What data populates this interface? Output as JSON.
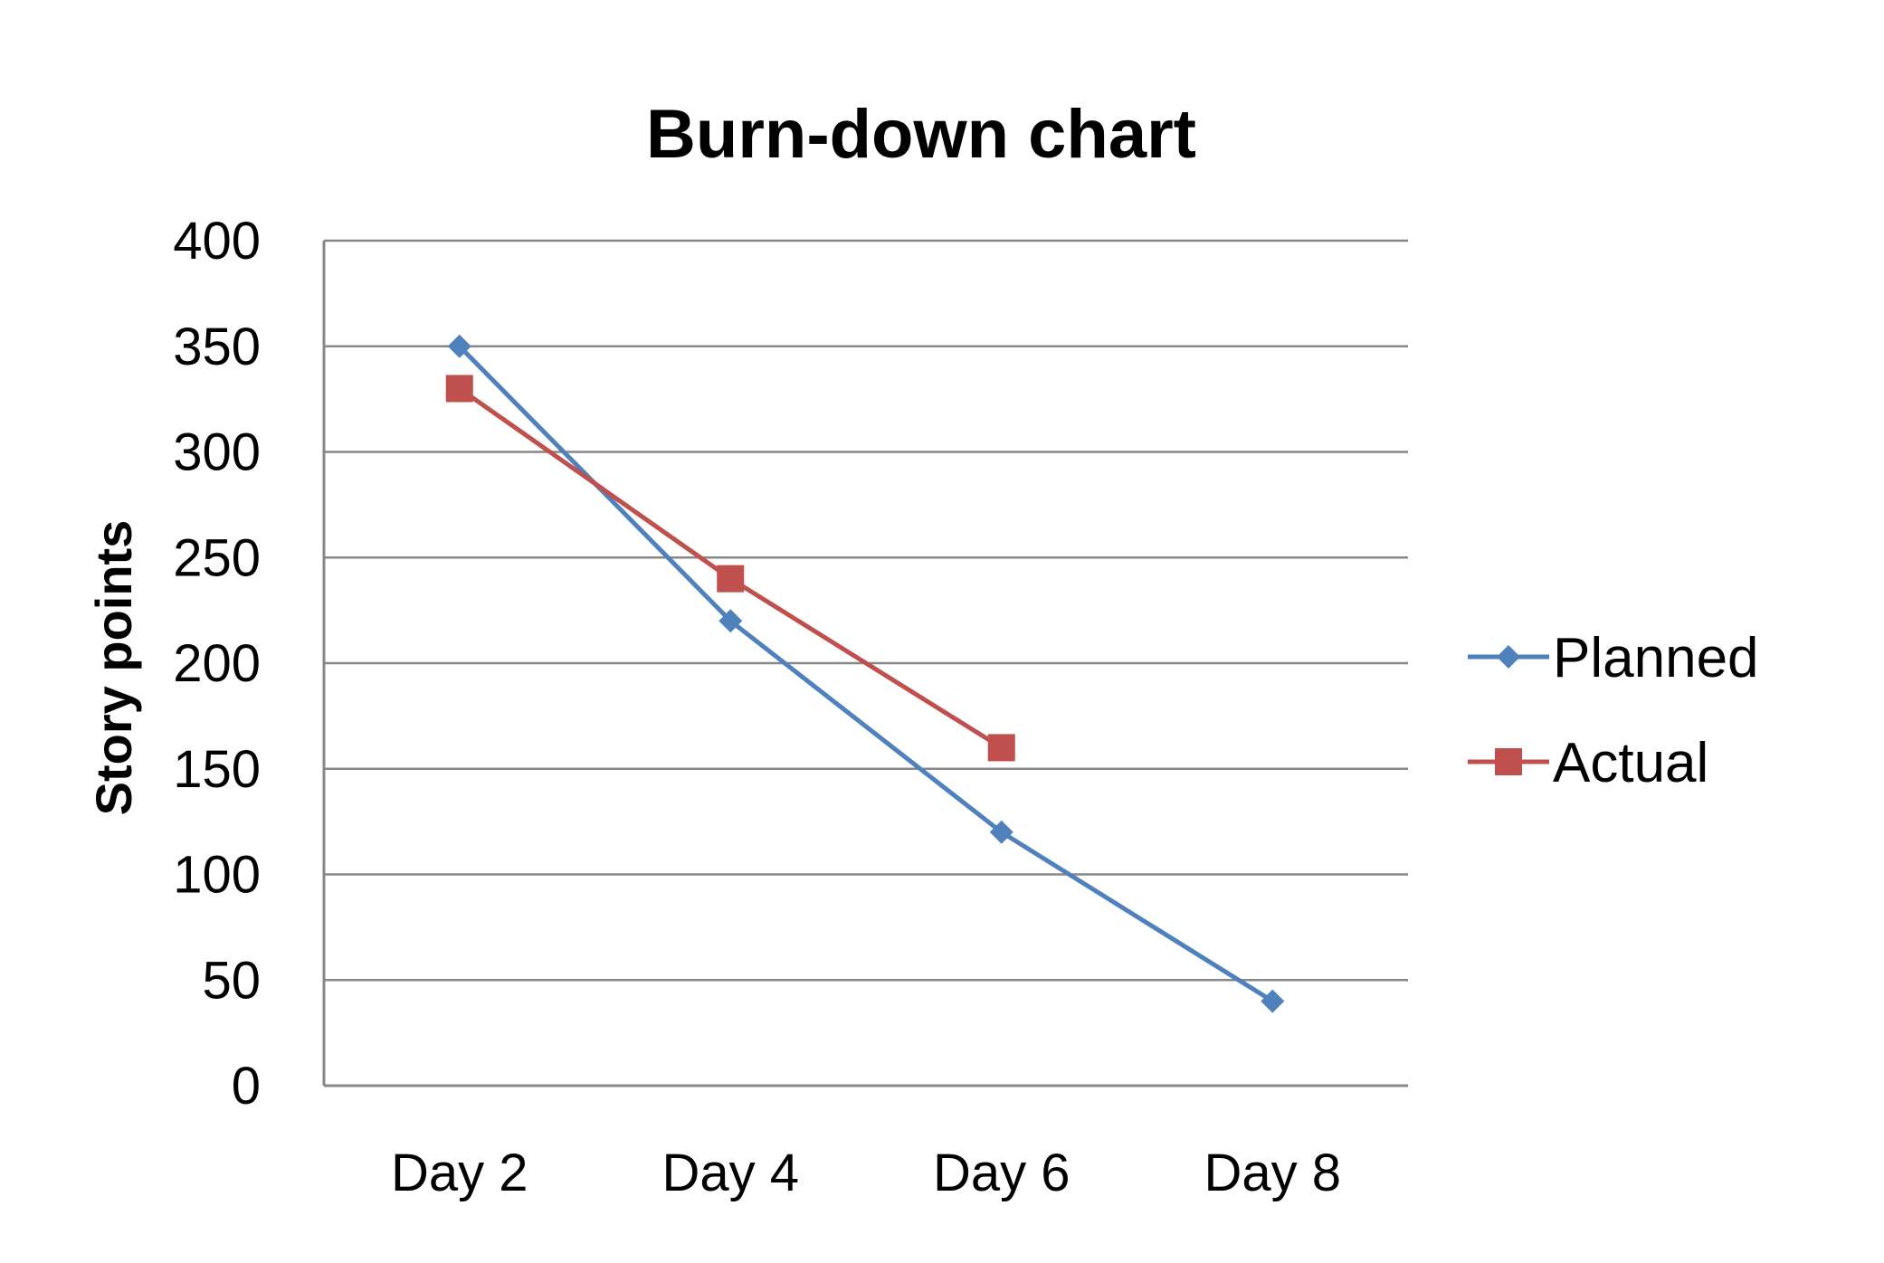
{
  "chart_data": {
    "type": "line",
    "title": "Burn-down chart",
    "xlabel": "",
    "ylabel": "Story points",
    "categories": [
      "Day 2",
      "Day 4",
      "Day 6",
      "Day 8"
    ],
    "ylim": [
      0,
      400
    ],
    "yticks": [
      "0",
      "50",
      "100",
      "150",
      "200",
      "250",
      "300",
      "350",
      "400"
    ],
    "grid": true,
    "legend_position": "right",
    "series": [
      {
        "name": "Planned",
        "values": [
          350,
          220,
          120,
          40
        ],
        "color": "#4f81bd",
        "marker": "diamond"
      },
      {
        "name": "Actual",
        "values": [
          330,
          240,
          160,
          null
        ],
        "color": "#c0504d",
        "marker": "square"
      }
    ]
  }
}
